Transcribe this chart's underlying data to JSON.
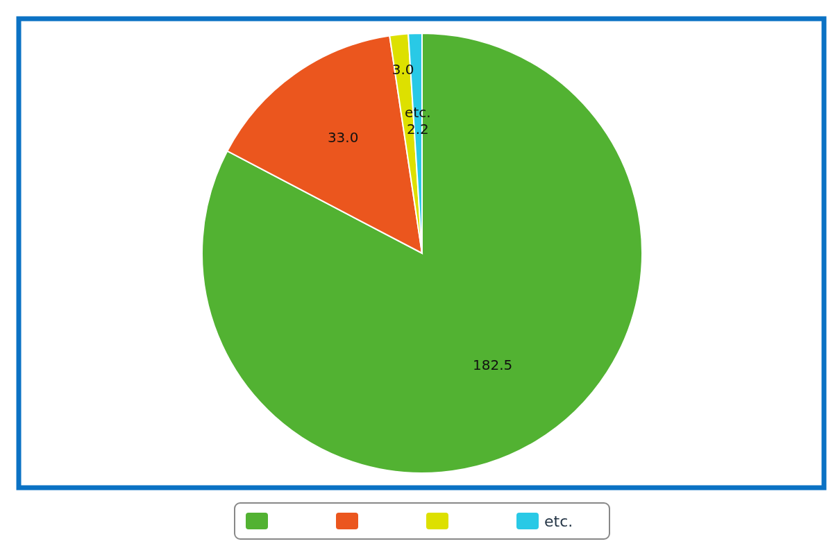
{
  "chart_data": {
    "type": "pie",
    "categories": [
      null,
      null,
      null,
      "etc."
    ],
    "values": [
      182.5,
      33.0,
      3.0,
      2.2
    ],
    "value_labels": [
      "182.5",
      "33.0",
      "3.0",
      "2.2"
    ],
    "colors": [
      "#52b232",
      "#eb561e",
      "#dde000",
      "#29c9e6"
    ],
    "legend": "bottom"
  }
}
